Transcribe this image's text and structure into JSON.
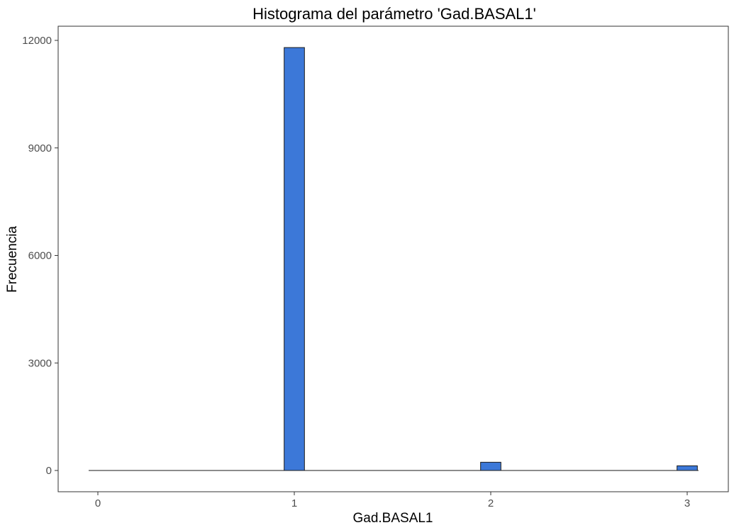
{
  "chart_data": {
    "type": "bar",
    "title": "Histograma del parámetro 'Gad.BASAL1'",
    "xlabel": "Gad.BASAL1",
    "ylabel": "Frecuencia",
    "x_ticks": [
      0,
      1,
      2,
      3
    ],
    "y_ticks": [
      0,
      3000,
      6000,
      9000,
      12000
    ],
    "xlim": [
      -0.05,
      3.05
    ],
    "ylim": [
      0,
      12000
    ],
    "bin_width": 0.1034,
    "bins": [
      {
        "x": 1.0,
        "count": 11800
      },
      {
        "x": 2.0,
        "count": 230
      },
      {
        "x": 3.0,
        "count": 130
      }
    ],
    "grid": false,
    "legend": "none",
    "colors": {
      "bar_fill": "#3c78d8",
      "bar_stroke": "#1a1a1a",
      "axis": "#333333",
      "tick_label": "#4d4d4d"
    }
  }
}
